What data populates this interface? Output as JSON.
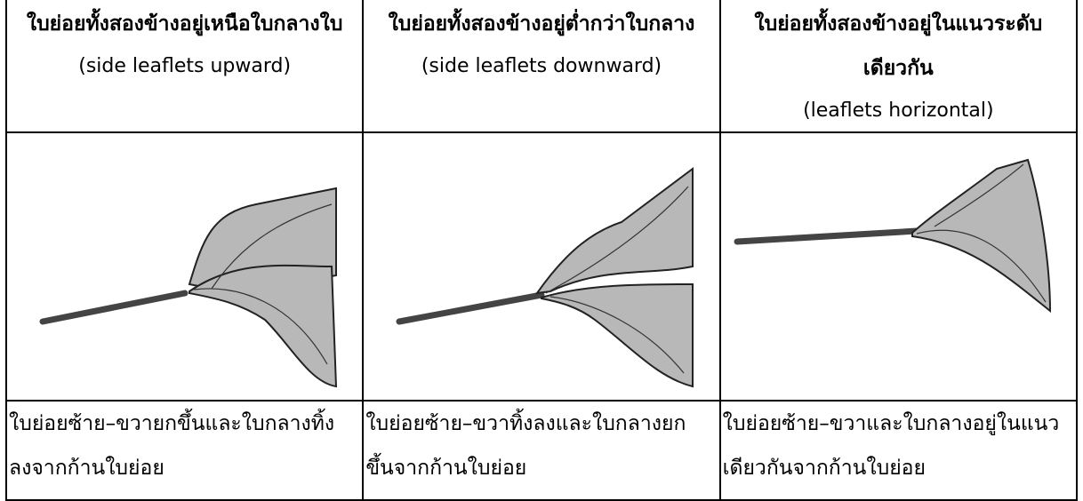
{
  "table": {
    "columns": [
      {
        "title": "ใบย่อยทั้งสองข้างอยู่เหนือใบกลางใบ",
        "subtitle": "(side leaflets upward)",
        "description": "ใบย่อยซ้าย–ขวายกขึ้นและใบกลางทิ้งลงจากก้านใบย่อย"
      },
      {
        "title": "ใบย่อยทั้งสองข้างอยู่ต่ำกว่าใบกลาง",
        "subtitle": "(side leaflets downward)",
        "description": "ใบย่อยซ้าย–ขวาทิ้งลงและใบกลางยกขึ้นจากก้านใบย่อย"
      },
      {
        "title": "ใบย่อยทั้งสองข้างอยู่ในแนวระดับเดียวกัน",
        "subtitle": "(leaflets horizontal)",
        "description": "ใบย่อยซ้าย–ขวาและใบกลางอยู่ในแนวเดียวกันจากก้านใบย่อย"
      }
    ]
  }
}
